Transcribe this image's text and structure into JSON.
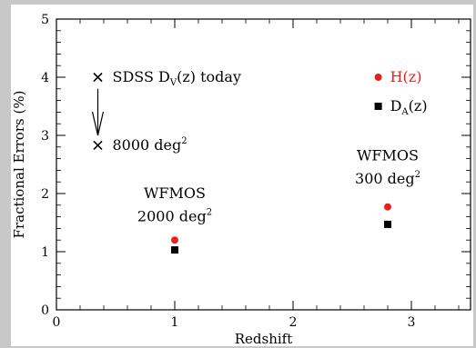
{
  "chart_data": {
    "type": "scatter",
    "xlabel": "Redshift",
    "ylabel": "Fractional Errors (%)",
    "xlim": [
      0,
      3.5
    ],
    "ylim": [
      0,
      5
    ],
    "x_ticks": [
      0,
      1,
      2,
      3
    ],
    "y_ticks": [
      0,
      1,
      2,
      3,
      4,
      5
    ],
    "grid": false,
    "legend": "top-right",
    "series": [
      {
        "name": "H(z)",
        "marker": "circle",
        "color": "#e8201c",
        "points": [
          {
            "x": 1.0,
            "y": 1.2
          },
          {
            "x": 2.8,
            "y": 1.77
          }
        ]
      },
      {
        "name": "D_A(z)",
        "marker": "square",
        "color": "#000000",
        "points": [
          {
            "x": 1.0,
            "y": 1.03
          },
          {
            "x": 2.8,
            "y": 1.47
          }
        ]
      }
    ],
    "sdss_markers": [
      {
        "x": 0.35,
        "y": 4.0,
        "label_main": "SDSS D",
        "label_sub": "V",
        "label_rest": "(z) today"
      },
      {
        "x": 0.35,
        "y": 2.83,
        "label_main": "8000 deg",
        "label_sup": "2"
      }
    ],
    "annotations": [
      {
        "id": "wfmos2000",
        "line1": "WFMOS",
        "line2": "2000 deg",
        "sup": "2",
        "x": 1.0,
        "y1": 1.92,
        "y2": 1.52
      },
      {
        "id": "wfmos300",
        "line1": "WFMOS",
        "line2": "300 deg",
        "sup": "2",
        "x": 2.8,
        "y1": 2.57,
        "y2": 2.17
      }
    ],
    "legend_entries": [
      {
        "label": "H(z)",
        "marker": "circle",
        "color": "#e8201c",
        "text_color": "#e8201c",
        "y": 4.0
      },
      {
        "label_main": "D",
        "label_sub": "A",
        "label_rest": "(z)",
        "marker": "square",
        "color": "#000000",
        "text_color": "#000000",
        "y": 3.5
      }
    ],
    "legend_x": 2.72,
    "arrow": {
      "x": 0.35,
      "from_y": 3.8,
      "to_y": 3.0
    }
  }
}
